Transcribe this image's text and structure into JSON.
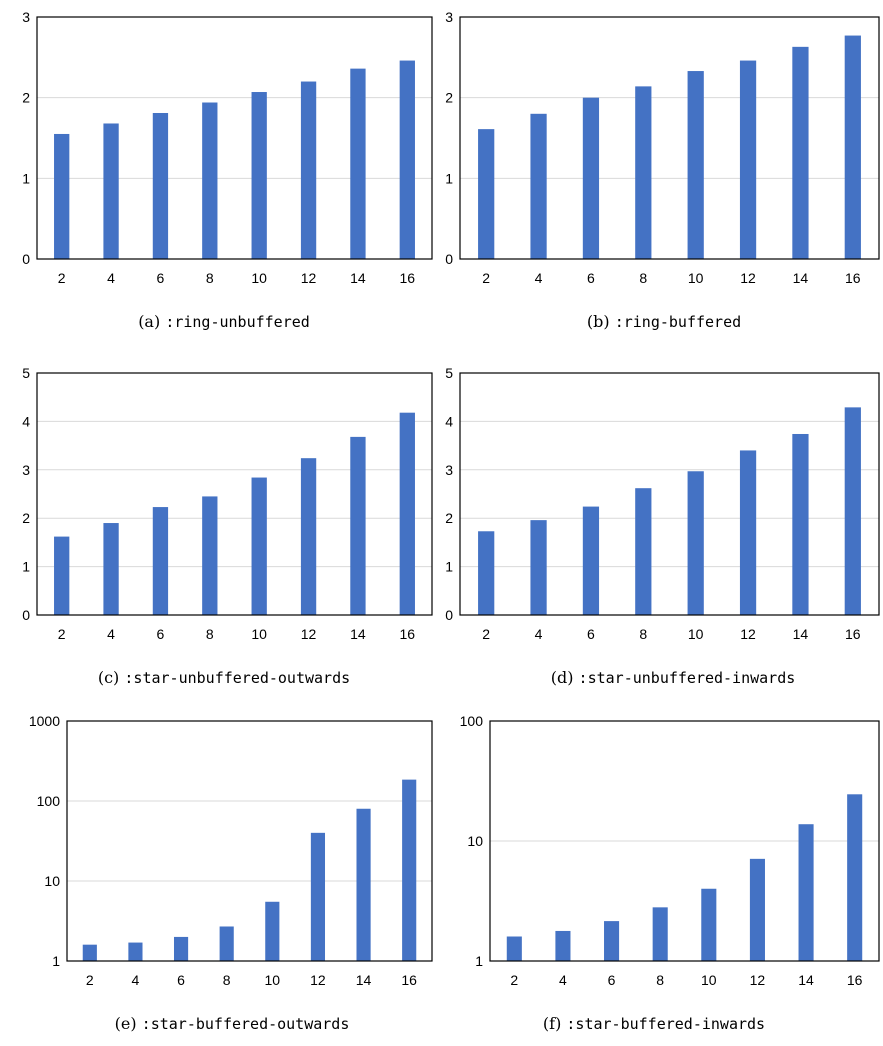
{
  "colors": {
    "bar": "#4472c4",
    "grid": "#d9d9d9",
    "frame": "#000000"
  },
  "chart_data": [
    {
      "type": "bar",
      "categories": [
        "2",
        "4",
        "6",
        "8",
        "10",
        "12",
        "14",
        "16"
      ],
      "values": [
        1.55,
        1.68,
        1.81,
        1.94,
        2.07,
        2.2,
        2.36,
        2.46
      ],
      "yscale": "linear",
      "ylim": [
        0,
        3
      ],
      "yticks": [
        "0",
        "1",
        "2",
        "3"
      ],
      "grid": true,
      "caption_label": "(a)",
      "caption_code": ":ring-unbuffered"
    },
    {
      "type": "bar",
      "categories": [
        "2",
        "4",
        "6",
        "8",
        "10",
        "12",
        "14",
        "16"
      ],
      "values": [
        1.61,
        1.8,
        2.0,
        2.14,
        2.33,
        2.46,
        2.63,
        2.77
      ],
      "yscale": "linear",
      "ylim": [
        0,
        3
      ],
      "yticks": [
        "0",
        "1",
        "2",
        "3"
      ],
      "grid": true,
      "caption_label": "(b)",
      "caption_code": ":ring-buffered"
    },
    {
      "type": "bar",
      "categories": [
        "2",
        "4",
        "6",
        "8",
        "10",
        "12",
        "14",
        "16"
      ],
      "values": [
        1.62,
        1.9,
        2.23,
        2.45,
        2.84,
        3.24,
        3.68,
        4.18
      ],
      "yscale": "linear",
      "ylim": [
        0,
        5
      ],
      "yticks": [
        "0",
        "1",
        "2",
        "3",
        "4",
        "5"
      ],
      "grid": true,
      "caption_label": "(c)",
      "caption_code": ":star-unbuffered-outwards"
    },
    {
      "type": "bar",
      "categories": [
        "2",
        "4",
        "6",
        "8",
        "10",
        "12",
        "14",
        "16"
      ],
      "values": [
        1.73,
        1.96,
        2.24,
        2.62,
        2.97,
        3.4,
        3.74,
        4.29
      ],
      "yscale": "linear",
      "ylim": [
        0,
        5
      ],
      "yticks": [
        "0",
        "1",
        "2",
        "3",
        "4",
        "5"
      ],
      "grid": true,
      "caption_label": "(d)",
      "caption_code": ":star-unbuffered-inwards"
    },
    {
      "type": "bar",
      "categories": [
        "2",
        "4",
        "6",
        "8",
        "10",
        "12",
        "14",
        "16"
      ],
      "values": [
        1.6,
        1.7,
        2.0,
        2.7,
        5.5,
        40,
        80,
        185
      ],
      "yscale": "log",
      "ylim": [
        1,
        1000
      ],
      "yticks": [
        "1",
        "10",
        "100",
        "1000"
      ],
      "grid": true,
      "caption_label": "(e)",
      "caption_code": ":star-buffered-outwards"
    },
    {
      "type": "bar",
      "categories": [
        "2",
        "4",
        "6",
        "8",
        "10",
        "12",
        "14",
        "16"
      ],
      "values": [
        1.6,
        1.78,
        2.15,
        2.8,
        4.0,
        7.1,
        13.8,
        24.5
      ],
      "yscale": "log",
      "ylim": [
        1,
        100
      ],
      "yticks": [
        "1",
        "10",
        "100"
      ],
      "grid": true,
      "caption_label": "(f)",
      "caption_code": ":star-buffered-inwards"
    }
  ]
}
